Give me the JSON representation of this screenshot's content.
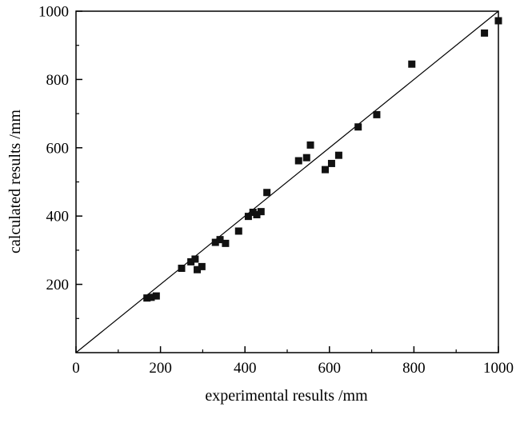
{
  "figure": {
    "background": "#ffffff",
    "frame_color": "#000000"
  },
  "chart_data": {
    "type": "scatter",
    "title": "",
    "xlabel": "experimental results /mm",
    "ylabel": "calculated results /mm",
    "xlim": [
      0,
      1000
    ],
    "ylim": [
      0,
      1000
    ],
    "x_tick_labels": [
      0,
      200,
      400,
      600,
      800,
      1000
    ],
    "y_tick_labels": [
      200,
      400,
      600,
      800,
      1000
    ],
    "minor_tick_step": 100,
    "grid": false,
    "legend": "none",
    "marker": "filled-square",
    "marker_color": "#111111",
    "marker_size": 9,
    "reference_line": {
      "type": "identity",
      "from": [
        0,
        0
      ],
      "to": [
        1000,
        1000
      ],
      "color": "#000000"
    },
    "points": [
      [
        168,
        160
      ],
      [
        178,
        162
      ],
      [
        190,
        166
      ],
      [
        250,
        247
      ],
      [
        272,
        266
      ],
      [
        282,
        274
      ],
      [
        287,
        243
      ],
      [
        298,
        252
      ],
      [
        330,
        323
      ],
      [
        341,
        331
      ],
      [
        354,
        320
      ],
      [
        385,
        356
      ],
      [
        408,
        399
      ],
      [
        419,
        411
      ],
      [
        428,
        404
      ],
      [
        438,
        413
      ],
      [
        452,
        469
      ],
      [
        527,
        562
      ],
      [
        546,
        571
      ],
      [
        555,
        608
      ],
      [
        590,
        536
      ],
      [
        605,
        554
      ],
      [
        622,
        578
      ],
      [
        668,
        661
      ],
      [
        712,
        697
      ],
      [
        795,
        845
      ],
      [
        967,
        936
      ],
      [
        1000,
        972
      ]
    ]
  }
}
